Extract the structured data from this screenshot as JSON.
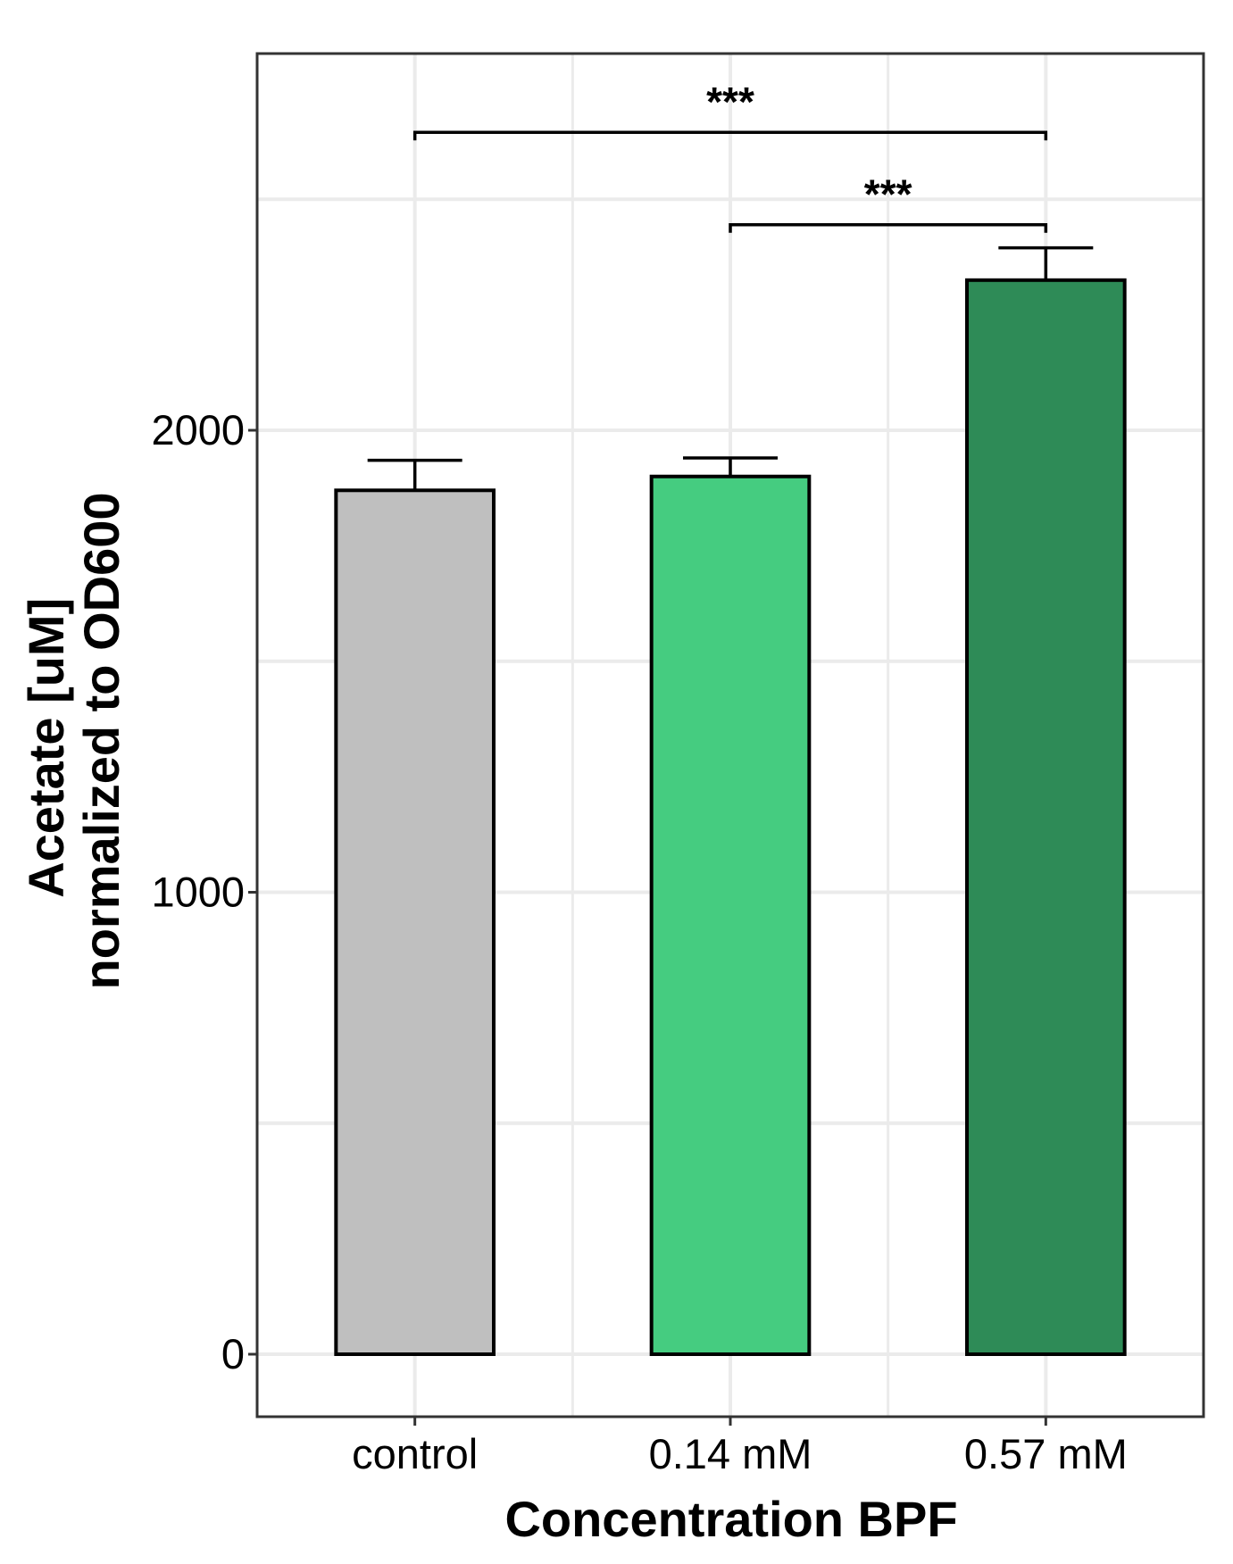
{
  "chart_data": {
    "type": "bar",
    "xlabel": "Concentration BPF",
    "ylabel_lines": [
      "Acetate [uM]",
      "normalized to OD600"
    ],
    "categories": [
      "control",
      "0.14 mM",
      "0.57 mM"
    ],
    "values": [
      1870,
      1900,
      2325
    ],
    "errors": [
      65,
      40,
      70
    ],
    "colors": [
      "#bfbfbf",
      "#45cc80",
      "#2e8b57"
    ],
    "ylim": [
      -135,
      2830
    ],
    "yticks": [
      0,
      1000,
      2000
    ],
    "ytick_labels": [
      "0",
      "1000",
      "2000"
    ],
    "grid": true,
    "significance": [
      {
        "from": "control",
        "to": "0.57 mM",
        "label": "***",
        "y": 2645
      },
      {
        "from": "0.14 mM",
        "to": "0.57 mM",
        "label": "***",
        "y": 2445
      }
    ]
  }
}
